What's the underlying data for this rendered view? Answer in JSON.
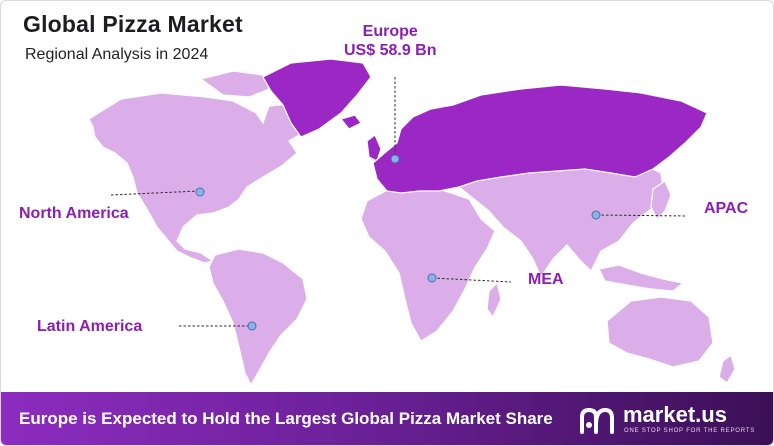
{
  "header": {
    "title": "Global Pizza Market",
    "subtitle": "Regional Analysis in 2024"
  },
  "regions": {
    "europe": {
      "name": "Europe",
      "value": "US$ 58.9 Bn"
    },
    "north_america": {
      "name": "North America"
    },
    "latin_america": {
      "name": "Latin America"
    },
    "mea": {
      "name": "MEA"
    },
    "apac": {
      "name": "APAC"
    }
  },
  "footer": {
    "headline": "Europe is Expected to Hold the Largest Global Pizza Market Share",
    "brand_name": "market.us",
    "brand_tagline": "ONE STOP SHOP FOR THE REPORTS"
  },
  "colors": {
    "highlight_region": "#9b27c4",
    "other_regions": "#dcaee9",
    "label_text": "#8b1fb1",
    "footer_start": "#8d2cc0",
    "footer_end": "#3b0f55"
  },
  "icons": [
    "market-us-logo-icon",
    "marker-dot-icon"
  ]
}
